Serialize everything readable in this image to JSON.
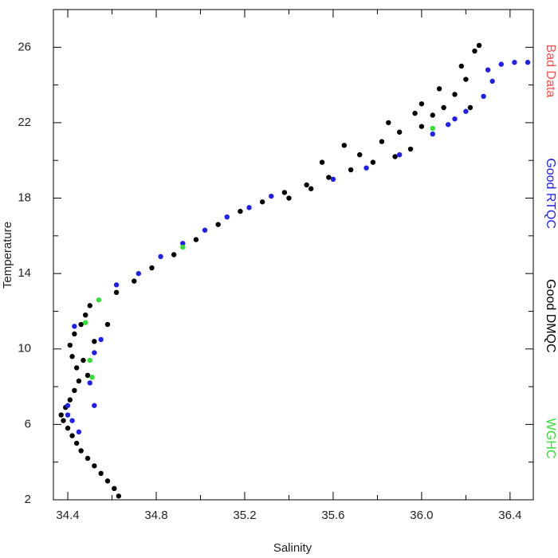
{
  "chart_data": {
    "type": "scatter",
    "x_label": "Salinity",
    "y_label": "Temperature",
    "xlim": [
      34.335,
      36.505
    ],
    "ylim": [
      2,
      28
    ],
    "xticks": [
      34.4,
      34.8,
      35.2,
      35.6,
      {
        "value": 36,
        "label": "36.0"
      },
      36.4
    ],
    "yticks": [
      2,
      6,
      10,
      14,
      18,
      22,
      26
    ],
    "xminor_ticks": [
      34.6,
      35,
      35.4,
      35.8,
      36.2
    ],
    "yminor_ticks": [
      4,
      8,
      12,
      16,
      20,
      24
    ],
    "legend": "right",
    "series": [
      {
        "name": "Bad Data",
        "color": "#ff5050",
        "x": [],
        "values": []
      },
      {
        "name": "Good RTQC",
        "color": "#2020ee",
        "x": [
          34.45,
          34.42,
          34.4,
          34.43,
          34.52,
          34.55,
          34.5,
          34.52,
          34.62,
          34.72,
          34.82,
          34.92,
          35.02,
          35.12,
          35.22,
          35.32,
          35.6,
          35.75,
          35.9,
          36.05,
          36.12,
          36.2,
          36.28,
          36.32,
          36.36,
          36.42,
          36.48,
          36.3,
          36.15,
          34.4
        ],
        "values": [
          5.6,
          6.2,
          7.0,
          11.2,
          9.8,
          10.5,
          8.2,
          7.0,
          13.4,
          14.0,
          14.9,
          15.6,
          16.3,
          17.0,
          17.5,
          18.1,
          19.0,
          19.6,
          20.3,
          21.4,
          21.9,
          22.6,
          23.4,
          24.2,
          25.1,
          25.2,
          25.2,
          24.8,
          22.2,
          6.5
        ]
      },
      {
        "name": "Good DMQC",
        "color": "#000000",
        "x": [
          34.63,
          34.61,
          34.58,
          34.55,
          34.52,
          34.49,
          34.46,
          34.44,
          34.42,
          34.4,
          34.38,
          34.37,
          34.39,
          34.41,
          34.43,
          34.45,
          34.44,
          34.42,
          34.41,
          34.43,
          34.46,
          34.48,
          34.5,
          34.47,
          34.49,
          34.52,
          34.58,
          34.62,
          34.7,
          34.78,
          34.88,
          34.98,
          35.08,
          35.18,
          35.28,
          35.38,
          35.48,
          35.58,
          35.68,
          35.78,
          35.88,
          35.95,
          35.72,
          35.82,
          35.9,
          36.0,
          36.05,
          36.0,
          36.1,
          36.15,
          36.2,
          36.18,
          36.24,
          36.26,
          35.97,
          35.85,
          35.65,
          35.55,
          36.08,
          36.22,
          35.4,
          35.5
        ],
        "values": [
          2.2,
          2.6,
          3.0,
          3.4,
          3.8,
          4.2,
          4.6,
          5.0,
          5.4,
          5.8,
          6.2,
          6.5,
          6.9,
          7.3,
          7.8,
          8.3,
          9.0,
          9.6,
          10.2,
          10.8,
          11.3,
          11.8,
          12.3,
          9.4,
          8.6,
          10.4,
          11.3,
          13.0,
          13.6,
          14.3,
          15.0,
          15.8,
          16.6,
          17.3,
          17.8,
          18.3,
          18.7,
          19.1,
          19.5,
          19.9,
          20.2,
          20.6,
          20.3,
          21.0,
          21.5,
          21.8,
          22.4,
          23.0,
          22.8,
          23.5,
          24.3,
          25.0,
          25.8,
          26.1,
          22.5,
          22.0,
          20.8,
          19.9,
          23.8,
          22.8,
          18.0,
          18.5
        ]
      },
      {
        "name": "WGHC",
        "color": "#30e030",
        "x": [
          34.48,
          34.5,
          34.51,
          34.54,
          34.92,
          36.05
        ],
        "values": [
          11.4,
          9.4,
          8.5,
          12.6,
          15.4,
          21.7
        ]
      }
    ]
  }
}
